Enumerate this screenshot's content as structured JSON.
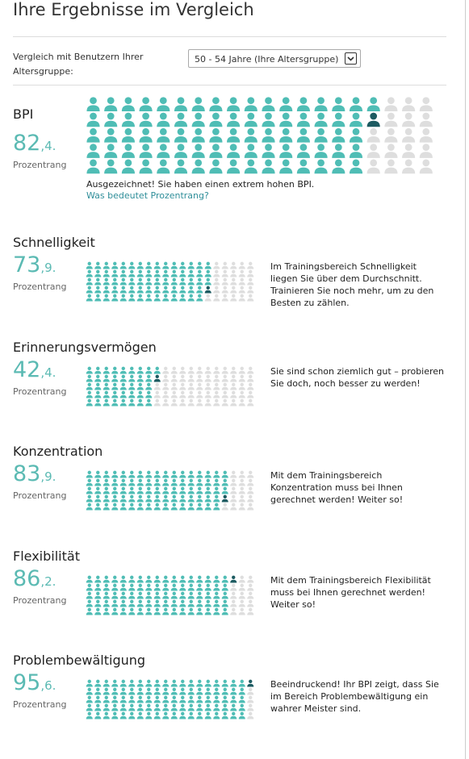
{
  "header": {
    "title": "Ihre Ergebnisse im Vergleich"
  },
  "comparison": {
    "label": "Vergleich mit Benutzern Ihrer Altersgruppe:",
    "select": "50 - 54 Jahre (Ihre Altersgruppe)"
  },
  "sections": [
    {
      "title": "BPI",
      "score_int": "82",
      "score_dec": ",4.",
      "score_label": "Prozentrang",
      "icons_filled": 82,
      "message": "Ausgezeichnet! Sie haben einen extrem hohen BPI.",
      "link": "Was bedeutet Prozentrang?"
    },
    {
      "title": "Schnelligkeit",
      "score_int": "73",
      "score_dec": ",9.",
      "score_label": "Prozentrang",
      "icons_filled": 74,
      "message": "Im Trainingsbereich Schnelligkeit liegen Sie über dem Durchschnitt. Trainieren Sie noch mehr, um zu den Besten zu zählen."
    },
    {
      "title": "Erinnerungsvermögen",
      "score_int": "42",
      "score_dec": ",4.",
      "score_label": "Prozentrang",
      "icons_filled": 42,
      "message": "Sie sind schon ziemlich gut – probieren Sie doch, noch besser zu werden!"
    },
    {
      "title": "Konzentration",
      "score_int": "83",
      "score_dec": ",9.",
      "score_label": "Prozentrang",
      "icons_filled": 84,
      "message": "Mit dem Trainingsbereich Konzentration muss bei Ihnen gerechnet werden! Weiter so!"
    },
    {
      "title": "Flexibilität",
      "score_int": "86",
      "score_dec": ",2.",
      "score_label": "Prozentrang",
      "icons_filled": 86,
      "message": "Mit dem Trainingsbereich Flexibilität muss bei Ihnen gerechnet werden! Weiter so!"
    },
    {
      "title": "Problembewältigung",
      "score_int": "95",
      "score_dec": ",6.",
      "score_label": "Prozentrang",
      "icons_filled": 96,
      "message": "Beeindruckend! Ihr BPI zeigt, dass Sie im Bereich Problembewältigung ein wahrer Meister sind."
    }
  ]
}
